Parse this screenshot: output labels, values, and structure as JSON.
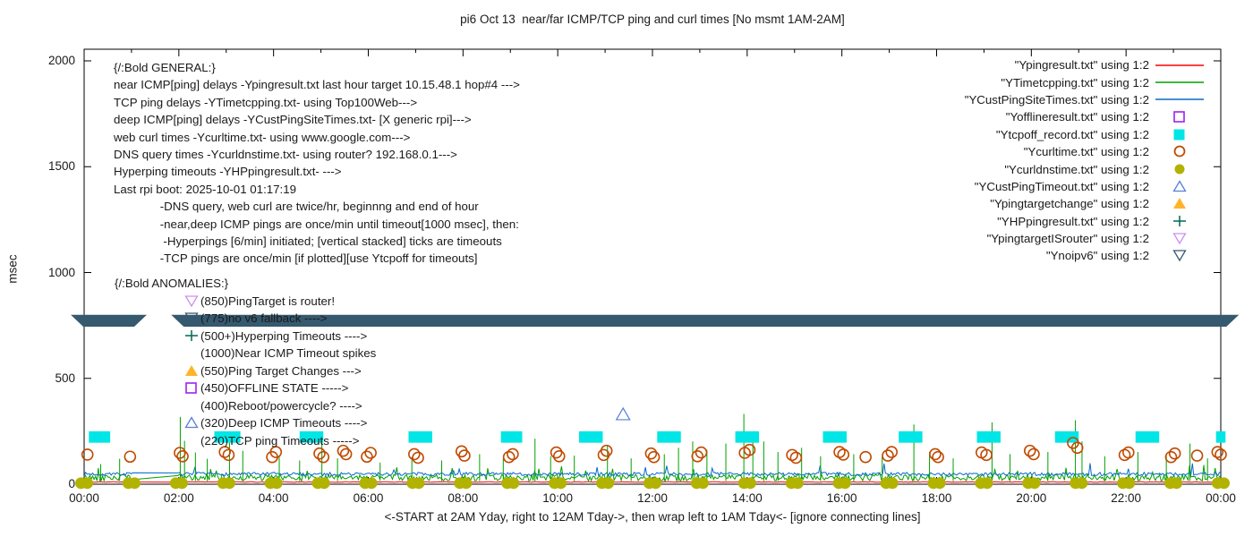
{
  "title": "pi6 Oct 13  near/far ICMP/TCP ping and curl times [No msmt 1AM-2AM]",
  "axes": {
    "ylabel": "msec",
    "xlabel": "<-START at 2AM Yday, right to 12AM Tday->, then wrap left to 1AM Tday<- [ignore connecting lines]",
    "x_ticks": [
      {
        "hour": 0,
        "label": "00:00"
      },
      {
        "hour": 2,
        "label": "02:00"
      },
      {
        "hour": 4,
        "label": "04:00"
      },
      {
        "hour": 6,
        "label": "06:00"
      },
      {
        "hour": 8,
        "label": "08:00"
      },
      {
        "hour": 10,
        "label": "10:00"
      },
      {
        "hour": 12,
        "label": "12:00"
      },
      {
        "hour": 14,
        "label": "14:00"
      },
      {
        "hour": 16,
        "label": "16:00"
      },
      {
        "hour": 18,
        "label": "18:00"
      },
      {
        "hour": 20,
        "label": "20:00"
      },
      {
        "hour": 22,
        "label": "22:00"
      },
      {
        "hour": 24,
        "label": "00:00"
      }
    ],
    "y_ticks": [
      {
        "value": 0,
        "label": "0"
      },
      {
        "value": 500,
        "label": "500"
      },
      {
        "value": 1000,
        "label": "1000"
      },
      {
        "value": 1500,
        "label": "1500"
      },
      {
        "value": 2000,
        "label": "2000"
      }
    ]
  },
  "colors": {
    "red": "#ff0000",
    "green": "#00a000",
    "blue": "#0868ce",
    "magenta": "#a020f0",
    "cyan": "#00e5e5",
    "curl_orange": "#c04a00",
    "olive": "#b2b200",
    "steel_triangle": "#5580d8",
    "orange_triangle": "#ffb428",
    "dark_green_plus": "#00694e",
    "violet_tridown": "#cf8df2",
    "slate_band": "#35596e",
    "axis": "#000000"
  },
  "legend": [
    {
      "label": "\"Ypingresult.txt\" using 1:2",
      "marker": "line",
      "color_key": "red"
    },
    {
      "label": "\"YTimetcpping.txt\" using 1:2",
      "marker": "line",
      "color_key": "green"
    },
    {
      "label": "\"YCustPingSiteTimes.txt\" using 1:2",
      "marker": "line",
      "color_key": "blue"
    },
    {
      "label": "\"Yofflineresult.txt\" using 1:2",
      "marker": "square-open",
      "color_key": "magenta"
    },
    {
      "label": "\"Ytcpoff_record.txt\" using 1:2",
      "marker": "square-filled",
      "color_key": "cyan"
    },
    {
      "label": "\"Ycurltime.txt\" using 1:2",
      "marker": "circle-open",
      "color_key": "curl_orange"
    },
    {
      "label": "\"Ycurldnstime.txt\" using 1:2",
      "marker": "circle-filled",
      "color_key": "olive"
    },
    {
      "label": "\"YCustPingTimeout.txt\" using 1:2",
      "marker": "triangle-open",
      "color_key": "steel_triangle"
    },
    {
      "label": "\"Ypingtargetchange\" using 1:2",
      "marker": "triangle-filled",
      "color_key": "orange_triangle"
    },
    {
      "label": "\"YHPpingresult.txt\" using 1:2",
      "marker": "plus",
      "color_key": "dark_green_plus"
    },
    {
      "label": "\"YpingtargetISrouter\" using 1:2",
      "marker": "tridown-open",
      "color_key": "violet_tridown"
    },
    {
      "label": "\"Ynoipv6\" using 1:2",
      "marker": "tridown-open",
      "color_key": "slate_band"
    }
  ],
  "general_block": {
    "lines": [
      "{/:Bold GENERAL:}",
      "near ICMP[ping] delays -Ypingresult.txt last hour target 10.15.48.1 hop#4 --->",
      "TCP ping delays -YTimetcpping.txt- using Top100Web--->",
      "deep ICMP[ping] delays -YCustPingSiteTimes.txt- [X generic rpi]--->",
      "web curl times -Ycurltime.txt- using www.google.com--->",
      "DNS query times -Ycurldnstime.txt- using router? 192.168.0.1--->",
      "Hyperping timeouts -YHPpingresult.txt- --->",
      "Last rpi boot: 2025-10-01 01:17:19",
      "              -DNS query, web curl are twice/hr, beginnng and end of hour",
      "              -near,deep ICMP pings are once/min until timeout[1000 msec], then:",
      "               -Hyperpings [6/min] initiated; [vertical stacked] ticks are timeouts",
      "              -TCP pings are once/min [if plotted][use Ytcpoff for timeouts]"
    ]
  },
  "anomalies_block": {
    "rows": [
      {
        "marker": "none-noindent",
        "color_key": "axis",
        "text": "{/:Bold ANOMALIES:}"
      },
      {
        "marker": "tridown-open",
        "color_key": "violet_tridown",
        "text": "(850)PingTarget is router!"
      },
      {
        "marker": "tridown-open",
        "color_key": "slate_band",
        "text": "(775)no v6 fallback ---->"
      },
      {
        "marker": "plus",
        "color_key": "dark_green_plus",
        "text": "(500+)Hyperping Timeouts ---->"
      },
      {
        "marker": "none",
        "color_key": "axis",
        "text": "(1000)Near ICMP Timeout spikes"
      },
      {
        "marker": "triangle-filled",
        "color_key": "orange_triangle",
        "text": "(550)Ping Target Changes --->"
      },
      {
        "marker": "square-open",
        "color_key": "magenta",
        "text": "(450)OFFLINE STATE ----->"
      },
      {
        "marker": "none",
        "color_key": "axis",
        "text": "(400)Reboot/powercycle? ---->"
      },
      {
        "marker": "triangle-open",
        "color_key": "steel_triangle",
        "text": "(320)Deep ICMP Timeouts ---->"
      },
      {
        "marker": "none",
        "color_key": "axis",
        "text": "(220)TCP ping Timeouts ----->"
      }
    ]
  },
  "chart_data": {
    "type": "line",
    "title": "pi6 Oct 13  near/far ICMP/TCP ping and curl times [No msmt 1AM-2AM]",
    "xlabel": "<-START at 2AM Yday, right to 12AM Tday->, then wrap left to 1AM Tday<- [ignore connecting lines]",
    "ylabel": "msec",
    "x_range_hours": [
      0,
      24
    ],
    "ylim": [
      0,
      2055
    ],
    "grid": false,
    "legend_position": "top-right-inside",
    "measurement_gap_hours": [
      1.03,
      1.97
    ],
    "series_lines": [
      {
        "name": "Ypingresult near ICMP",
        "color_key": "red",
        "baseline_ms": 9,
        "noise_amp_ms": 3,
        "step_hr": 0.05,
        "seed": 3
      },
      {
        "name": "YTimetcpping TCP ping",
        "color_key": "green",
        "baseline_ms": 16,
        "noise_amp_ms": 30,
        "step_hr": 0.03,
        "seed": 42
      },
      {
        "name": "YCustPingSiteTimes deep ICMP",
        "color_key": "blue",
        "baseline_ms": 40,
        "noise_amp_ms": 16,
        "step_hr": 0.03,
        "seed": 7
      }
    ],
    "hyperping_impulses": [
      [
        0.35,
        95
      ],
      [
        0.75,
        120
      ],
      [
        2.03,
        318
      ],
      [
        2.12,
        205
      ],
      [
        2.35,
        150
      ],
      [
        2.6,
        120
      ],
      [
        3.07,
        200
      ],
      [
        3.35,
        158
      ],
      [
        4.12,
        132
      ],
      [
        4.55,
        112
      ],
      [
        5.02,
        215
      ],
      [
        5.35,
        122
      ],
      [
        6.25,
        102
      ],
      [
        6.92,
        128
      ],
      [
        7.55,
        112
      ],
      [
        8.35,
        142
      ],
      [
        8.85,
        122
      ],
      [
        9.52,
        215
      ],
      [
        9.85,
        132
      ],
      [
        10.35,
        135
      ],
      [
        11.05,
        185
      ],
      [
        11.55,
        122
      ],
      [
        12.25,
        142
      ],
      [
        12.55,
        172
      ],
      [
        12.85,
        202
      ],
      [
        13.15,
        162
      ],
      [
        13.55,
        192
      ],
      [
        13.93,
        332
      ],
      [
        14.12,
        242
      ],
      [
        14.35,
        202
      ],
      [
        14.65,
        152
      ],
      [
        15.15,
        172
      ],
      [
        15.55,
        132
      ],
      [
        16.25,
        142
      ],
      [
        16.85,
        132
      ],
      [
        17.52,
        282
      ],
      [
        17.85,
        152
      ],
      [
        18.35,
        122
      ],
      [
        19.17,
        292
      ],
      [
        19.55,
        142
      ],
      [
        20.35,
        152
      ],
      [
        20.93,
        302
      ],
      [
        21.07,
        202
      ],
      [
        21.55,
        132
      ],
      [
        22.25,
        152
      ],
      [
        22.85,
        142
      ],
      [
        23.35,
        192
      ],
      [
        23.72,
        122
      ]
    ],
    "tcpoff_bars": {
      "value_ms_low": 196,
      "value_ms_high": 250,
      "segments_hours": [
        [
          0.1,
          0.55
        ],
        [
          2.75,
          3.3
        ],
        [
          4.55,
          5.05
        ],
        [
          6.85,
          7.35
        ],
        [
          8.8,
          9.25
        ],
        [
          10.45,
          10.95
        ],
        [
          12.1,
          12.6
        ],
        [
          13.75,
          14.25
        ],
        [
          15.6,
          16.1
        ],
        [
          17.2,
          17.7
        ],
        [
          18.85,
          19.35
        ],
        [
          20.5,
          21.0
        ],
        [
          22.2,
          22.7
        ],
        [
          23.9,
          24.1
        ]
      ]
    },
    "curl_points": [
      [
        0.07,
        140
      ],
      [
        0.97,
        130
      ],
      [
        2.02,
        148
      ],
      [
        2.08,
        132
      ],
      [
        2.97,
        152
      ],
      [
        3.05,
        138
      ],
      [
        3.97,
        128
      ],
      [
        4.05,
        152
      ],
      [
        4.97,
        145
      ],
      [
        5.05,
        128
      ],
      [
        5.47,
        158
      ],
      [
        5.53,
        142
      ],
      [
        5.97,
        130
      ],
      [
        6.05,
        148
      ],
      [
        6.97,
        142
      ],
      [
        7.05,
        125
      ],
      [
        7.97,
        155
      ],
      [
        8.03,
        135
      ],
      [
        8.97,
        128
      ],
      [
        9.05,
        142
      ],
      [
        9.97,
        150
      ],
      [
        10.03,
        132
      ],
      [
        10.97,
        138
      ],
      [
        11.03,
        158
      ],
      [
        11.97,
        145
      ],
      [
        12.03,
        128
      ],
      [
        12.95,
        132
      ],
      [
        13.03,
        150
      ],
      [
        13.95,
        148
      ],
      [
        14.05,
        162
      ],
      [
        14.95,
        138
      ],
      [
        15.03,
        125
      ],
      [
        15.95,
        152
      ],
      [
        16.03,
        140
      ],
      [
        16.5,
        128
      ],
      [
        16.97,
        135
      ],
      [
        17.05,
        152
      ],
      [
        17.97,
        142
      ],
      [
        18.03,
        128
      ],
      [
        18.95,
        150
      ],
      [
        19.05,
        138
      ],
      [
        19.97,
        158
      ],
      [
        20.05,
        142
      ],
      [
        20.88,
        195
      ],
      [
        20.97,
        172
      ],
      [
        21.97,
        138
      ],
      [
        22.05,
        150
      ],
      [
        22.95,
        128
      ],
      [
        23.03,
        145
      ],
      [
        23.5,
        135
      ],
      [
        23.93,
        152
      ],
      [
        24.0,
        140
      ]
    ],
    "dns_points": {
      "hours": [
        0,
        1,
        2,
        3,
        4,
        5,
        6,
        7,
        8,
        9,
        10,
        11,
        12,
        13,
        14,
        15,
        16,
        17,
        18,
        19,
        20,
        21,
        22,
        23,
        24
      ],
      "value_ms": 5
    },
    "noipv6_band": {
      "center_ms": 772,
      "half_height_ms": 28,
      "segments_hours": [
        [
          -0.15,
          1.19
        ],
        [
          1.97,
          24.25
        ]
      ]
    },
    "deep_icmp_timeout_point": {
      "hour": 11.38,
      "value_ms": 330
    }
  }
}
